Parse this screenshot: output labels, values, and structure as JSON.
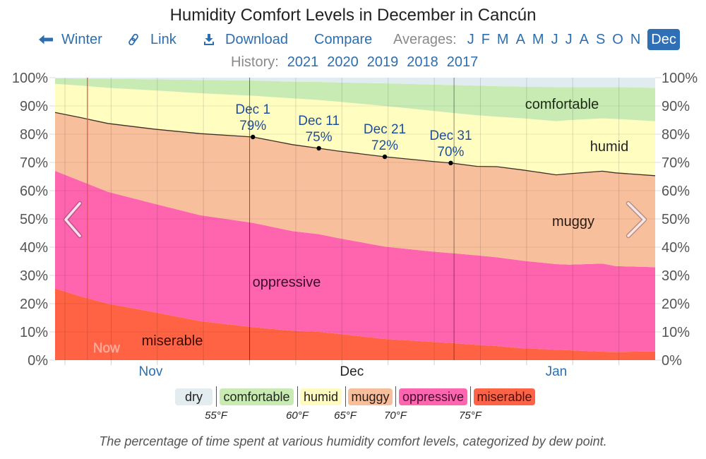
{
  "page": {
    "title": "Humidity Comfort Levels in December in Cancún"
  },
  "toolbar": {
    "back": {
      "icon": "arrow-left-icon",
      "label": "Winter"
    },
    "link": {
      "icon": "link-icon",
      "label": "Link"
    },
    "download": {
      "icon": "download-icon",
      "label": "Download"
    },
    "compare": {
      "label": "Compare"
    },
    "averages": {
      "label": "Averages:",
      "months": [
        "J",
        "F",
        "M",
        "A",
        "M",
        "J",
        "J",
        "A",
        "S",
        "O",
        "N",
        "Dec"
      ],
      "selected": "Dec",
      "selected_index": 11
    }
  },
  "history": {
    "label": "History:",
    "years": [
      "2021",
      "2020",
      "2019",
      "2018",
      "2017"
    ]
  },
  "colors": {
    "link": "#2d6eaf",
    "selected_bg": "#2e6fb6",
    "selected_text": "#ffffff",
    "muted_text": "#8a8a8a",
    "annotation_text": "#1f4f9c",
    "now_line": "#e0584a"
  },
  "navigation": {
    "previous_icon": "chevron-left-icon",
    "next_icon": "chevron-right-icon"
  },
  "chart_data": {
    "type": "area",
    "stacked": true,
    "title": "Humidity Comfort Levels in December in Cancún",
    "xlabel": "",
    "ylabel": "",
    "x_unit": "days since Nov 1",
    "x_range": [
      0,
      91
    ],
    "x": [
      0,
      4,
      8,
      15,
      22,
      30,
      36,
      40,
      43,
      50,
      57,
      60,
      64,
      67,
      71,
      76,
      78,
      83,
      85,
      91
    ],
    "ylim": [
      0,
      100
    ],
    "y_ticks": [
      0,
      10,
      20,
      30,
      40,
      50,
      60,
      70,
      80,
      90,
      100
    ],
    "y_tick_labels": [
      "0%",
      "10%",
      "20%",
      "30%",
      "40%",
      "50%",
      "60%",
      "70%",
      "80%",
      "90%",
      "100%"
    ],
    "grid": true,
    "legend": "bottom",
    "months": [
      {
        "label": "Nov",
        "first_day": 0,
        "days": 30,
        "current": false,
        "link": true
      },
      {
        "label": "Dec",
        "first_day": 30,
        "days": 31,
        "current": true,
        "link": false
      },
      {
        "label": "Jan",
        "first_day": 61,
        "days": 31,
        "current": false,
        "link": true
      }
    ],
    "series": [
      {
        "name": "miserable",
        "color": "#ff6343",
        "label_color": "#3a0a05",
        "values": [
          25.4,
          22.5,
          20.0,
          17.0,
          13.8,
          11.7,
          10.4,
          10.0,
          9.3,
          7.5,
          6.5,
          6.1,
          5.4,
          5.0,
          4.2,
          3.7,
          3.5,
          3.0,
          2.9,
          3.1
        ]
      },
      {
        "name": "oppressive",
        "color": "#ff64af",
        "label_color": "#3d0a2a",
        "values": [
          41.6,
          40.8,
          39.6,
          38.4,
          37.5,
          36.9,
          35.3,
          34.6,
          33.9,
          32.7,
          32.0,
          31.8,
          31.7,
          31.4,
          31.0,
          30.3,
          30.3,
          31.2,
          30.4,
          29.8
        ]
      },
      {
        "name": "muggy",
        "color": "#f8bf9c",
        "label_color": "#2a1a10",
        "values": [
          20.7,
          22.5,
          24.2,
          26.4,
          28.9,
          30.4,
          30.6,
          30.4,
          30.8,
          31.8,
          31.9,
          31.9,
          31.5,
          32.1,
          32.1,
          31.6,
          32.2,
          32.7,
          33.0,
          32.4
        ]
      },
      {
        "name": "humid",
        "color": "#fffdc0",
        "label_color": "#222222",
        "values": [
          10.1,
          11.4,
          12.6,
          13.7,
          14.3,
          14.6,
          16.4,
          17.1,
          17.5,
          18.0,
          17.9,
          17.8,
          18.1,
          17.7,
          18.3,
          19.0,
          19.0,
          18.7,
          19.1,
          19.3
        ]
      },
      {
        "name": "comfortable",
        "color": "#c8ebb4",
        "label_color": "#1d2a14",
        "values": [
          2.0,
          2.5,
          3.2,
          3.9,
          4.7,
          5.4,
          5.9,
          6.4,
          6.8,
          8.0,
          9.3,
          9.8,
          10.5,
          10.8,
          11.2,
          12.1,
          11.7,
          11.1,
          11.3,
          11.8
        ]
      },
      {
        "name": "dry",
        "color": "#e1ecf0",
        "label_color": "#222222",
        "values": [
          0.2,
          0.3,
          0.4,
          0.6,
          0.8,
          1.0,
          1.4,
          1.5,
          1.7,
          2.0,
          2.4,
          2.6,
          2.8,
          3.0,
          3.2,
          3.3,
          3.3,
          3.3,
          3.3,
          3.6
        ]
      }
    ],
    "boundary_line": {
      "after_series": "muggy"
    },
    "annotations": [
      {
        "date_label": "Dec 1",
        "value_label": "79%",
        "day": 30,
        "value": 79
      },
      {
        "date_label": "Dec 11",
        "value_label": "75%",
        "day": 40,
        "value": 75
      },
      {
        "date_label": "Dec 21",
        "value_label": "72%",
        "day": 50,
        "value": 72
      },
      {
        "date_label": "Dec 31",
        "value_label": "70%",
        "day": 60,
        "value": 70
      }
    ],
    "now_marker": {
      "label": "Now",
      "day": 4.9
    }
  },
  "legend": {
    "items": [
      {
        "label": "dry",
        "color": "#e3ecef",
        "text_color": "#222222"
      },
      {
        "label": "comfortable",
        "color": "#c9eab3",
        "text_color": "#1f2a18"
      },
      {
        "label": "humid",
        "color": "#fffbc0",
        "text_color": "#222222"
      },
      {
        "label": "muggy",
        "color": "#f8be9c",
        "text_color": "#2a1a10"
      },
      {
        "label": "oppressive",
        "color": "#ff66b0",
        "text_color": "#4a0a30"
      },
      {
        "label": "miserable",
        "color": "#ff6347",
        "text_color": "#4a0f08"
      }
    ],
    "thresholds": [
      "55°F",
      "60°F",
      "65°F",
      "70°F",
      "75°F"
    ]
  },
  "caption": "The percentage of time spent at various humidity comfort levels, categorized by dew point."
}
